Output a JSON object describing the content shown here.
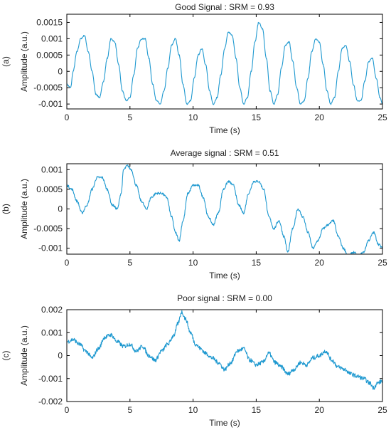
{
  "chart_data": [
    {
      "type": "line",
      "panel_label": "(a)",
      "title": "Good Signal : SRM = 0.93",
      "xlabel": "Time (s)",
      "ylabel": "Amplitude (a.u.)",
      "xlim": [
        0,
        25
      ],
      "ylim": [
        -0.00115,
        0.00175
      ],
      "xticks": [
        0,
        5,
        10,
        15,
        20,
        25
      ],
      "xtick_labels": [
        "0",
        "5",
        "10",
        "15",
        "20",
        "25"
      ],
      "yticks": [
        0.0015,
        0.001,
        0.0005,
        0,
        -0.0005,
        -0.001
      ],
      "ytick_labels": [
        "0.0015",
        "0.001",
        "0.0005",
        "0",
        "-0.0005",
        "-0.001"
      ],
      "grid": false,
      "color": "#1f99d0",
      "series": [
        {
          "x": [
            0,
            0.3,
            0.5,
            0.8,
            1.1,
            1.4,
            1.7,
            2.0,
            2.3,
            2.6,
            2.9,
            3.2,
            3.5,
            3.8,
            4.1,
            4.4,
            4.7,
            5.0,
            5.3,
            5.6,
            5.9,
            6.2,
            6.5,
            6.8,
            7.1,
            7.4,
            7.7,
            8.0,
            8.3,
            8.6,
            8.9,
            9.2,
            9.5,
            9.8,
            10.1,
            10.4,
            10.7,
            11.0,
            11.3,
            11.6,
            11.9,
            12.2,
            12.5,
            12.8,
            13.1,
            13.4,
            13.7,
            14.0,
            14.3,
            14.6,
            14.9,
            15.2,
            15.5,
            15.8,
            16.1,
            16.4,
            16.7,
            17.0,
            17.3,
            17.6,
            17.9,
            18.2,
            18.5,
            18.8,
            19.1,
            19.4,
            19.7,
            20.0,
            20.3,
            20.6,
            20.9,
            21.2,
            21.5,
            21.8,
            22.1,
            22.4,
            22.7,
            23.0,
            23.3,
            23.6,
            23.9,
            24.2,
            24.5,
            24.8,
            25.0
          ],
          "y": [
            -0.0004,
            -0.0005,
            0.0,
            0.0006,
            0.001,
            0.0011,
            0.0006,
            0.0,
            -0.0007,
            -0.0008,
            -0.0003,
            0.0004,
            0.001,
            0.0009,
            0.0002,
            -0.0006,
            -0.0009,
            -0.0008,
            -0.0001,
            0.0007,
            0.001,
            0.001,
            0.0004,
            -0.0004,
            -0.0009,
            -0.001,
            -0.0006,
            0.0001,
            0.0008,
            0.001,
            0.0005,
            -0.0004,
            -0.001,
            -0.0009,
            -0.0002,
            0.0005,
            0.0007,
            0.0002,
            -0.0006,
            -0.001,
            -0.0008,
            -0.0001,
            0.0007,
            0.0012,
            0.0011,
            0.0004,
            -0.0005,
            -0.001,
            -0.0008,
            0.0,
            0.0009,
            0.0015,
            0.0013,
            0.0004,
            -0.0006,
            -0.001,
            -0.0007,
            0.0001,
            0.0008,
            0.0009,
            0.0003,
            -0.0005,
            -0.001,
            -0.0009,
            -0.0002,
            0.0006,
            0.001,
            0.0009,
            0.0002,
            -0.0006,
            -0.001,
            -0.0008,
            0.0,
            0.0007,
            0.0008,
            0.0003,
            -0.0004,
            -0.0009,
            -0.0009,
            -0.0003,
            0.0003,
            0.0004,
            -0.0002,
            -0.0008,
            -0.001
          ]
        }
      ]
    },
    {
      "type": "line",
      "panel_label": "(b)",
      "title": "Average signal : SRM = 0.51",
      "xlabel": "Time (s)",
      "ylabel": "Amplitude (a.u.)",
      "xlim": [
        0,
        25
      ],
      "ylim": [
        -0.00115,
        0.00115
      ],
      "xticks": [
        0,
        5,
        10,
        15,
        20,
        25
      ],
      "xtick_labels": [
        "0",
        "5",
        "10",
        "15",
        "20",
        "25"
      ],
      "yticks": [
        0.001,
        0.0005,
        0,
        -0.0005,
        -0.001
      ],
      "ytick_labels": [
        "0.001",
        "0.0005",
        "0",
        "-0.0005",
        "-0.001"
      ],
      "grid": false,
      "color": "#1f99d0",
      "series": [
        {
          "x": [
            0,
            0.4,
            0.8,
            1.2,
            1.6,
            2.0,
            2.4,
            2.8,
            3.2,
            3.6,
            4.0,
            4.3,
            4.5,
            4.8,
            5.1,
            5.5,
            5.9,
            6.3,
            6.7,
            7.1,
            7.5,
            7.9,
            8.3,
            8.6,
            8.9,
            9.2,
            9.6,
            10.0,
            10.4,
            10.8,
            11.2,
            11.6,
            12.0,
            12.4,
            12.8,
            13.2,
            13.6,
            14.0,
            14.4,
            14.8,
            15.2,
            15.6,
            16.0,
            16.4,
            16.8,
            17.2,
            17.5,
            17.9,
            18.3,
            18.7,
            19.1,
            19.5,
            19.9,
            20.3,
            20.7,
            21.1,
            21.5,
            21.9,
            22.3,
            22.7,
            23.1,
            23.5,
            23.9,
            24.3,
            24.7,
            25.0
          ],
          "y": [
            0.0006,
            0.0005,
            0.0002,
            -0.0001,
            0.0001,
            0.0005,
            0.0008,
            0.0008,
            0.0005,
            0.0001,
            0.0,
            0.0004,
            0.001,
            0.0011,
            0.001,
            0.0006,
            0.0002,
            0.0,
            0.0003,
            0.0004,
            0.0004,
            0.0003,
            -0.0002,
            -0.0006,
            -0.0008,
            -0.0003,
            0.0004,
            0.0006,
            0.0006,
            0.0003,
            -0.0002,
            -0.0004,
            -0.0001,
            0.0005,
            0.0007,
            0.0006,
            0.0001,
            -0.0001,
            0.0004,
            0.0007,
            0.0007,
            0.0005,
            -0.0002,
            -0.0005,
            -0.0003,
            -0.0007,
            -0.0011,
            -0.0005,
            0.0,
            -0.0002,
            -0.0006,
            -0.001,
            -0.0008,
            -0.0005,
            -0.0004,
            -0.0003,
            -0.0007,
            -0.001,
            -0.0012,
            -0.0011,
            -0.0012,
            -0.0011,
            -0.0008,
            -0.0006,
            -0.0009,
            -0.001
          ]
        }
      ]
    },
    {
      "type": "line",
      "panel_label": "(c)",
      "title": "Poor signal : SRM = 0.00",
      "xlabel": "Time (s)",
      "ylabel": "Amplitude (a.u.)",
      "xlim": [
        0,
        25
      ],
      "ylim": [
        -0.002,
        0.002
      ],
      "xticks": [
        0,
        5,
        10,
        15,
        20,
        25
      ],
      "xtick_labels": [
        "0",
        "5",
        "10",
        "15",
        "20",
        "25"
      ],
      "yticks": [
        0.002,
        0.001,
        0,
        -0.001,
        -0.002
      ],
      "ytick_labels": [
        "0.002",
        "0.001",
        "0",
        "-0.001",
        "-0.002"
      ],
      "grid": false,
      "color": "#1f99d0",
      "series": [
        {
          "x": [
            0,
            0.5,
            1.0,
            1.5,
            2.0,
            2.5,
            3.0,
            3.5,
            4.0,
            4.5,
            5.0,
            5.5,
            6.0,
            6.5,
            7.0,
            7.5,
            8.0,
            8.5,
            8.8,
            9.1,
            9.4,
            9.8,
            10.2,
            10.6,
            11.0,
            11.5,
            12.0,
            12.5,
            13.0,
            13.5,
            14.0,
            14.5,
            15.0,
            15.5,
            16.0,
            16.5,
            17.0,
            17.5,
            18.0,
            18.5,
            19.0,
            19.5,
            20.0,
            20.5,
            21.0,
            21.5,
            22.0,
            22.5,
            23.0,
            23.5,
            24.0,
            24.3,
            24.6,
            25.0
          ],
          "y": [
            0.0006,
            0.0007,
            0.0005,
            0.0002,
            -0.0001,
            0.0003,
            0.0008,
            0.0009,
            0.0006,
            0.0004,
            0.0005,
            0.0002,
            0.0004,
            0.0,
            -0.0002,
            0.0002,
            0.0005,
            0.0009,
            0.0014,
            0.0019,
            0.0016,
            0.001,
            0.0005,
            0.0003,
            0.0001,
            -0.0001,
            -0.0003,
            -0.0006,
            -0.0003,
            0.0002,
            0.0003,
            -0.0002,
            -0.0004,
            -0.0003,
            0.0001,
            -0.0003,
            -0.0005,
            -0.0008,
            -0.0006,
            -0.0003,
            -0.0004,
            -0.0001,
            0.0,
            0.0002,
            -0.0002,
            -0.0005,
            -0.0006,
            -0.0008,
            -0.0009,
            -0.001,
            -0.0012,
            -0.0014,
            -0.0012,
            -0.0011
          ]
        }
      ]
    }
  ]
}
